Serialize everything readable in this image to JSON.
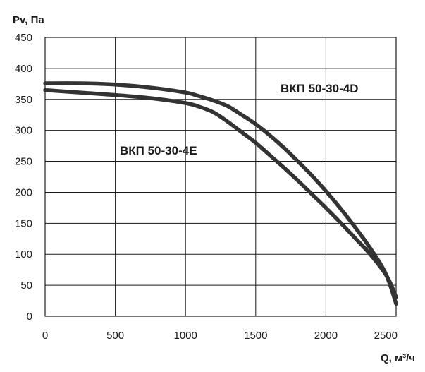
{
  "chart_data": {
    "type": "line",
    "ylabel": "Pv, Па",
    "xlabel": "Q, м³/ч",
    "xlim": [
      0,
      2500
    ],
    "ylim": [
      0,
      450
    ],
    "xticks": [
      0,
      500,
      1000,
      1500,
      2000,
      2500
    ],
    "yticks": [
      0,
      50,
      100,
      150,
      200,
      250,
      300,
      350,
      400,
      450
    ],
    "grid": true,
    "series": [
      {
        "name": "ВКП 50-30-4D",
        "color": "#333333",
        "x": [
          0,
          250,
          500,
          750,
          1000,
          1100,
          1200,
          1300,
          1400,
          1500,
          1600,
          1700,
          1800,
          1900,
          2000,
          2100,
          2200,
          2300,
          2400,
          2450,
          2500
        ],
        "y": [
          376,
          376,
          374,
          369,
          361,
          355,
          348,
          339,
          325,
          310,
          292,
          272,
          250,
          227,
          202,
          175,
          146,
          115,
          80,
          55,
          20
        ]
      },
      {
        "name": "ВКП 50-30-4E",
        "color": "#333333",
        "x": [
          0,
          250,
          500,
          750,
          1000,
          1100,
          1200,
          1300,
          1400,
          1500,
          1600,
          1700,
          1800,
          1900,
          2000,
          2100,
          2200,
          2300,
          2400,
          2450,
          2500
        ],
        "y": [
          365,
          361,
          357,
          352,
          344,
          338,
          329,
          314,
          297,
          280,
          260,
          240,
          219,
          197,
          175,
          152,
          128,
          104,
          76,
          58,
          31
        ]
      }
    ]
  }
}
